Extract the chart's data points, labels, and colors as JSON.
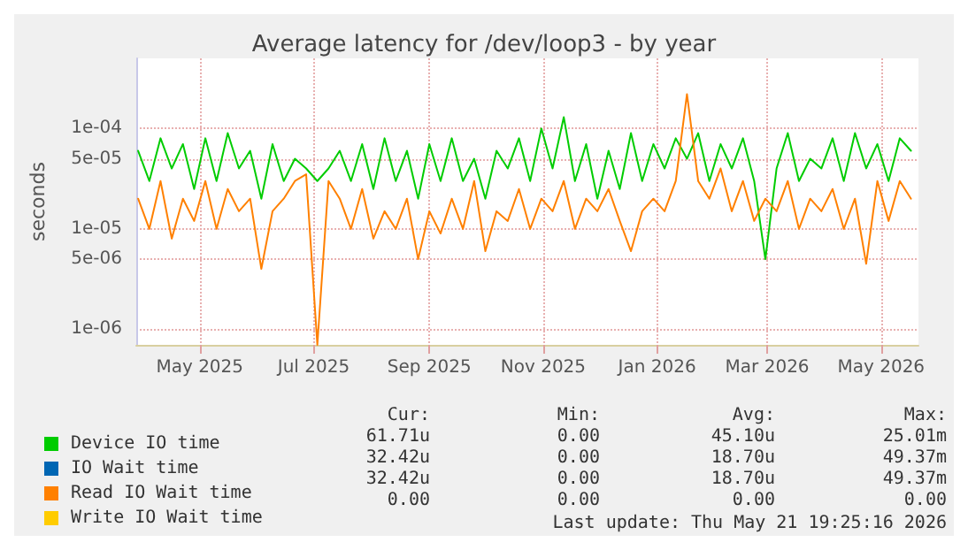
{
  "chart_data": {
    "type": "line",
    "title": "Average latency for /dev/loop3 - by year",
    "ylabel": "seconds",
    "log": "y",
    "grid": true,
    "legend": "bottom",
    "marker": "none",
    "line_style": "solid",
    "xlim": [
      "2025-03-28",
      "2026-05-21"
    ],
    "xticks": [
      {
        "value": "2025-05-01",
        "label": "May 2025"
      },
      {
        "value": "2025-07-01",
        "label": "Jul 2025"
      },
      {
        "value": "2025-09-01",
        "label": "Sep 2025"
      },
      {
        "value": "2025-11-01",
        "label": "Nov 2025"
      },
      {
        "value": "2026-01-01",
        "label": "Jan 2026"
      },
      {
        "value": "2026-03-01",
        "label": "Mar 2026"
      },
      {
        "value": "2026-05-01",
        "label": "May 2026"
      }
    ],
    "ylim": [
      7e-07,
      0.0005
    ],
    "yticks": [
      {
        "value": 1e-06,
        "label": "1e-06"
      },
      {
        "value": 5e-06,
        "label": "5e-06"
      },
      {
        "value": 1e-05,
        "label": "1e-05"
      },
      {
        "value": 5e-05,
        "label": "5e-05"
      },
      {
        "value": 0.0001,
        "label": "1e-04"
      }
    ],
    "x": [
      "2025-03-29",
      "2025-04-04",
      "2025-04-10",
      "2025-04-16",
      "2025-04-22",
      "2025-04-28",
      "2025-05-04",
      "2025-05-10",
      "2025-05-16",
      "2025-05-22",
      "2025-05-28",
      "2025-06-03",
      "2025-06-09",
      "2025-06-15",
      "2025-06-21",
      "2025-06-27",
      "2025-07-03",
      "2025-07-09",
      "2025-07-15",
      "2025-07-21",
      "2025-07-27",
      "2025-08-02",
      "2025-08-08",
      "2025-08-14",
      "2025-08-20",
      "2025-08-26",
      "2025-09-01",
      "2025-09-07",
      "2025-09-13",
      "2025-09-19",
      "2025-09-25",
      "2025-10-01",
      "2025-10-07",
      "2025-10-13",
      "2025-10-19",
      "2025-10-25",
      "2025-10-31",
      "2025-11-06",
      "2025-11-12",
      "2025-11-18",
      "2025-11-24",
      "2025-11-30",
      "2025-12-06",
      "2025-12-12",
      "2025-12-18",
      "2025-12-24",
      "2025-12-30",
      "2026-01-05",
      "2026-01-11",
      "2026-01-17",
      "2026-01-23",
      "2026-01-29",
      "2026-02-04",
      "2026-02-10",
      "2026-02-16",
      "2026-02-22",
      "2026-02-28",
      "2026-03-06",
      "2026-03-12",
      "2026-03-18",
      "2026-03-24",
      "2026-03-30",
      "2026-04-05",
      "2026-04-11",
      "2026-04-17",
      "2026-04-23",
      "2026-04-29",
      "2026-05-05",
      "2026-05-11",
      "2026-05-17"
    ],
    "series": [
      {
        "name": "Device IO time",
        "color": "#00cc00",
        "values": [
          6e-05,
          3e-05,
          8e-05,
          4e-05,
          7e-05,
          2.5e-05,
          8e-05,
          3e-05,
          9e-05,
          4e-05,
          6e-05,
          2e-05,
          7e-05,
          3e-05,
          5e-05,
          4e-05,
          3e-05,
          4e-05,
          6e-05,
          3e-05,
          7e-05,
          2.5e-05,
          8e-05,
          3e-05,
          6e-05,
          2e-05,
          7e-05,
          3e-05,
          8e-05,
          3e-05,
          5e-05,
          2e-05,
          6e-05,
          4e-05,
          8e-05,
          3e-05,
          0.0001,
          4e-05,
          0.00013,
          3e-05,
          7e-05,
          2e-05,
          6e-05,
          2.5e-05,
          9e-05,
          3e-05,
          7e-05,
          4e-05,
          8e-05,
          5e-05,
          9e-05,
          3e-05,
          7e-05,
          4e-05,
          8e-05,
          3e-05,
          5e-06,
          4e-05,
          9e-05,
          3e-05,
          5e-05,
          4e-05,
          8e-05,
          3e-05,
          9e-05,
          4e-05,
          7e-05,
          3e-05,
          8e-05,
          6e-05
        ]
      },
      {
        "name": "IO Wait time",
        "color": "#0066b3",
        "values": [
          null,
          null,
          null,
          null,
          null,
          null,
          null,
          null,
          null,
          null,
          null,
          null,
          null,
          null,
          null,
          null,
          null,
          null,
          null,
          null,
          null,
          null,
          null,
          null,
          null,
          null,
          null,
          null,
          null,
          null,
          null,
          null,
          null,
          null,
          null,
          null,
          null,
          null,
          null,
          null,
          null,
          null,
          null,
          null,
          null,
          null,
          null,
          null,
          null,
          null,
          null,
          null,
          null,
          null,
          null,
          null,
          null,
          null,
          null,
          null,
          null,
          null,
          null,
          null,
          null,
          null,
          null,
          null,
          null,
          null
        ]
      },
      {
        "name": "Read IO Wait time",
        "color": "#ff8000",
        "values": [
          2e-05,
          1e-05,
          3e-05,
          8e-06,
          2e-05,
          1.2e-05,
          3e-05,
          1e-05,
          2.5e-05,
          1.5e-05,
          2e-05,
          4e-06,
          1.5e-05,
          2e-05,
          3e-05,
          3.5e-05,
          7e-07,
          3e-05,
          2e-05,
          1e-05,
          2.5e-05,
          8e-06,
          1.5e-05,
          1e-05,
          2e-05,
          5e-06,
          1.5e-05,
          9e-06,
          2e-05,
          1e-05,
          3e-05,
          6e-06,
          1.5e-05,
          1.2e-05,
          2.5e-05,
          1e-05,
          2e-05,
          1.5e-05,
          3e-05,
          1e-05,
          2e-05,
          1.5e-05,
          2.5e-05,
          1.2e-05,
          6e-06,
          1.5e-05,
          2e-05,
          1.5e-05,
          3e-05,
          0.00022,
          3e-05,
          2e-05,
          4e-05,
          1.5e-05,
          3e-05,
          1.2e-05,
          2e-05,
          1.5e-05,
          3e-05,
          1e-05,
          2e-05,
          1.5e-05,
          2.5e-05,
          1e-05,
          2e-05,
          4.5e-06,
          3e-05,
          1.2e-05,
          3e-05,
          2e-05
        ]
      },
      {
        "name": "Write IO Wait time",
        "color": "#ffcc00",
        "values": [
          null,
          null,
          null,
          null,
          null,
          null,
          null,
          null,
          null,
          null,
          null,
          null,
          null,
          null,
          null,
          null,
          null,
          null,
          null,
          null,
          null,
          null,
          null,
          null,
          null,
          null,
          null,
          null,
          null,
          null,
          null,
          null,
          null,
          null,
          null,
          null,
          null,
          null,
          null,
          null,
          null,
          null,
          null,
          null,
          null,
          null,
          null,
          null,
          null,
          null,
          null,
          null,
          null,
          null,
          null,
          null,
          null,
          null,
          null,
          null,
          null,
          null,
          null,
          null,
          null,
          null,
          null,
          null,
          null,
          null
        ]
      }
    ],
    "annotations": [
      "Cur:",
      "Min:",
      "Avg:",
      "Max:",
      "61.71u",
      "0.00",
      "45.10u",
      "25.01m",
      "32.42u",
      "0.00",
      "18.70u",
      "49.37m",
      "32.42u",
      "0.00",
      "18.70u",
      "49.37m",
      "0.00",
      "0.00",
      "0.00",
      "0.00",
      "Last update: Thu May 21 19:25:16 2026"
    ]
  }
}
